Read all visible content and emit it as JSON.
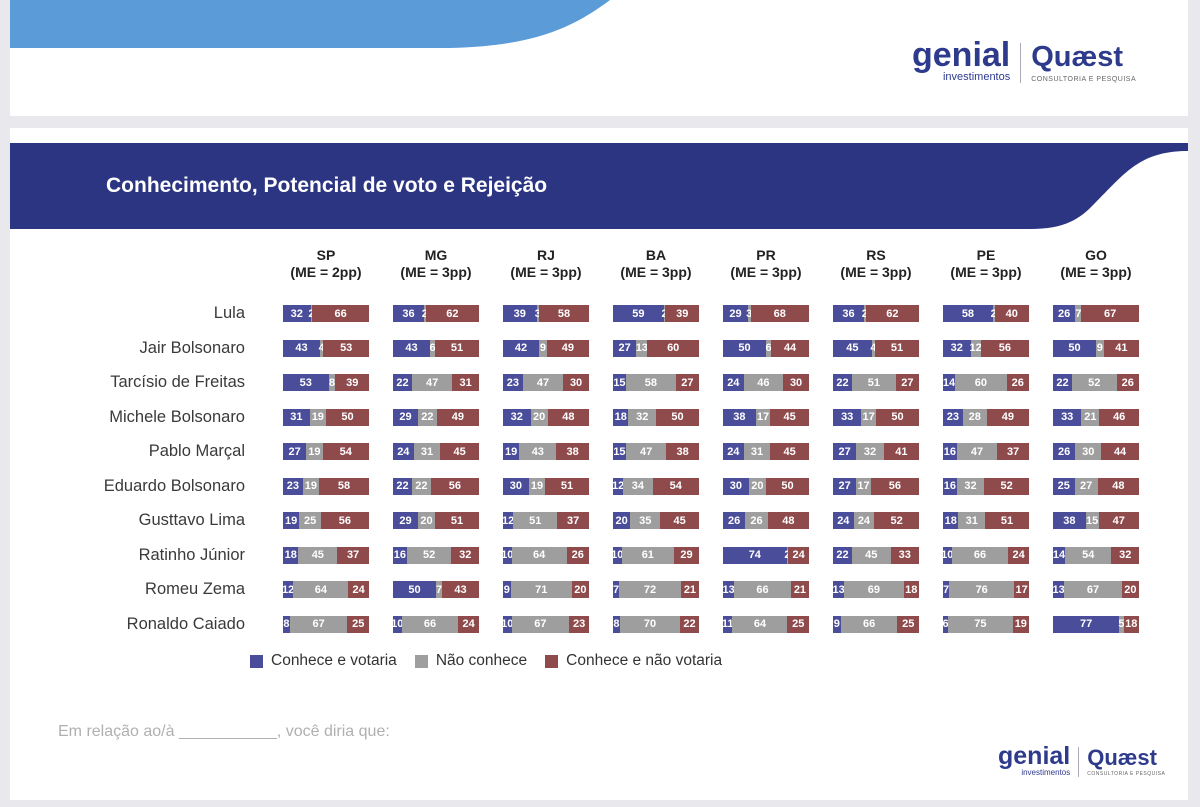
{
  "header": {
    "title": "Conhecimento, Potencial de voto e Rejeição",
    "logo_genial": "genial",
    "logo_genial_sub": "investimentos",
    "logo_quaest": "Quæst",
    "logo_quaest_sub": "CONSULTORIA E PESQUISA"
  },
  "colors": {
    "navy": "#2c3582",
    "light_blue": "#5b9bd8",
    "conhece_votaria": "#4a4d9a",
    "nao_conhece": "#9e9e9e",
    "conhece_nao_votaria": "#8f4a4c"
  },
  "footnote": "Em relação ao/à ___________, você diria que:",
  "chart_data": {
    "type": "bar",
    "stacked": true,
    "states": [
      {
        "name": "SP",
        "me": "(ME = 2pp)"
      },
      {
        "name": "MG",
        "me": "(ME = 3pp)"
      },
      {
        "name": "RJ",
        "me": "(ME = 3pp)"
      },
      {
        "name": "BA",
        "me": "(ME = 3pp)"
      },
      {
        "name": "PR",
        "me": "(ME = 3pp)"
      },
      {
        "name": "RS",
        "me": "(ME = 3pp)"
      },
      {
        "name": "PE",
        "me": "(ME = 3pp)"
      },
      {
        "name": "GO",
        "me": "(ME = 3pp)"
      }
    ],
    "series_names": [
      "Conhece e votaria",
      "Não conhece",
      "Conhece e não votaria"
    ],
    "candidates": [
      {
        "name": "Lula",
        "values": [
          [
            32,
            2,
            66
          ],
          [
            36,
            2,
            62
          ],
          [
            39,
            3,
            58
          ],
          [
            59,
            2,
            39
          ],
          [
            29,
            3,
            68
          ],
          [
            36,
            2,
            62
          ],
          [
            58,
            2,
            40
          ],
          [
            26,
            7,
            67
          ]
        ]
      },
      {
        "name": "Jair Bolsonaro",
        "values": [
          [
            43,
            4,
            53
          ],
          [
            43,
            6,
            51
          ],
          [
            42,
            9,
            49
          ],
          [
            27,
            13,
            60
          ],
          [
            50,
            6,
            44
          ],
          [
            45,
            4,
            51
          ],
          [
            32,
            12,
            56
          ],
          [
            50,
            9,
            41
          ]
        ]
      },
      {
        "name": "Tarcísio de Freitas",
        "values": [
          [
            53,
            8,
            39
          ],
          [
            22,
            47,
            31
          ],
          [
            23,
            47,
            30
          ],
          [
            15,
            58,
            27
          ],
          [
            24,
            46,
            30
          ],
          [
            22,
            51,
            27
          ],
          [
            14,
            60,
            26
          ],
          [
            22,
            52,
            26
          ]
        ]
      },
      {
        "name": "Michele Bolsonaro",
        "values": [
          [
            31,
            19,
            50
          ],
          [
            29,
            22,
            49
          ],
          [
            32,
            20,
            48
          ],
          [
            18,
            32,
            50
          ],
          [
            38,
            17,
            45
          ],
          [
            33,
            17,
            50
          ],
          [
            23,
            28,
            49
          ],
          [
            33,
            21,
            46
          ]
        ]
      },
      {
        "name": "Pablo Marçal",
        "values": [
          [
            27,
            19,
            54
          ],
          [
            24,
            31,
            45
          ],
          [
            19,
            43,
            38
          ],
          [
            15,
            47,
            38
          ],
          [
            24,
            31,
            45
          ],
          [
            27,
            32,
            41
          ],
          [
            16,
            47,
            37
          ],
          [
            26,
            30,
            44
          ]
        ]
      },
      {
        "name": "Eduardo Bolsonaro",
        "values": [
          [
            23,
            19,
            58
          ],
          [
            22,
            22,
            56
          ],
          [
            30,
            19,
            51
          ],
          [
            12,
            34,
            54
          ],
          [
            30,
            20,
            50
          ],
          [
            27,
            17,
            56
          ],
          [
            16,
            32,
            52
          ],
          [
            25,
            27,
            48
          ]
        ]
      },
      {
        "name": "Gusttavo Lima",
        "values": [
          [
            19,
            25,
            56
          ],
          [
            29,
            20,
            51
          ],
          [
            12,
            51,
            37
          ],
          [
            20,
            35,
            45
          ],
          [
            26,
            26,
            48
          ],
          [
            24,
            24,
            52
          ],
          [
            18,
            31,
            51
          ],
          [
            38,
            15,
            47
          ]
        ]
      },
      {
        "name": "Ratinho Júnior",
        "values": [
          [
            18,
            45,
            37
          ],
          [
            16,
            52,
            32
          ],
          [
            10,
            64,
            26
          ],
          [
            10,
            61,
            29
          ],
          [
            74,
            2,
            24
          ],
          [
            22,
            45,
            33
          ],
          [
            10,
            66,
            24
          ],
          [
            14,
            54,
            32
          ]
        ]
      },
      {
        "name": "Romeu Zema",
        "values": [
          [
            12,
            64,
            24
          ],
          [
            50,
            7,
            43
          ],
          [
            9,
            71,
            20
          ],
          [
            7,
            72,
            21
          ],
          [
            13,
            66,
            21
          ],
          [
            13,
            69,
            18
          ],
          [
            7,
            76,
            17
          ],
          [
            13,
            67,
            20
          ]
        ]
      },
      {
        "name": "Ronaldo Caiado",
        "values": [
          [
            8,
            67,
            25
          ],
          [
            10,
            66,
            24
          ],
          [
            10,
            67,
            23
          ],
          [
            8,
            70,
            22
          ],
          [
            11,
            64,
            25
          ],
          [
            9,
            66,
            25
          ],
          [
            6,
            75,
            19
          ],
          [
            77,
            5,
            18
          ]
        ]
      }
    ]
  }
}
